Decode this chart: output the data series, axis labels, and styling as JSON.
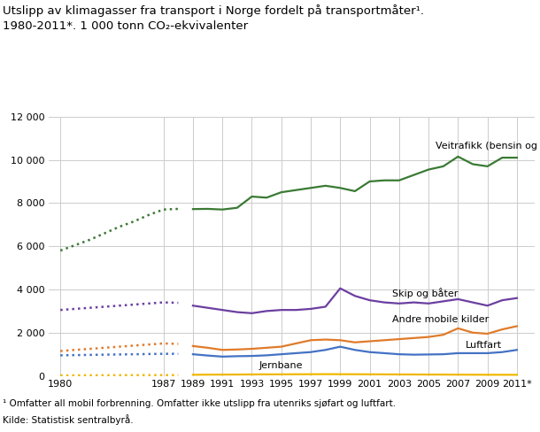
{
  "title_line1": "Utslipp av klimagasser fra transport i Norge fordelt på transportmåter¹.",
  "title_line2": "1980-2011*. 1 000 tonn CO₂-ekvivalenter",
  "footnote1": "¹ Omfatter all mobil forbrenning. Omfatter ikke utslipp fra utenriks sjøfart og luftfart.",
  "footnote2": "Kilde: Statistisk sentralbyrå.",
  "years_dotted": [
    1980,
    1981,
    1982,
    1983,
    1984,
    1985,
    1986,
    1987,
    1988
  ],
  "years_solid": [
    1989,
    1990,
    1991,
    1992,
    1993,
    1994,
    1995,
    1996,
    1997,
    1998,
    1999,
    2000,
    2001,
    2002,
    2003,
    2004,
    2005,
    2006,
    2007,
    2008,
    2009,
    2010,
    2011
  ],
  "veitrafikk_dotted": [
    5800,
    6050,
    6300,
    6600,
    6900,
    7150,
    7450,
    7700,
    7730
  ],
  "veitrafikk_solid": [
    7720,
    7730,
    7700,
    7780,
    8300,
    8250,
    8500,
    8600,
    8700,
    8800,
    8700,
    8550,
    9000,
    9050,
    9050,
    9300,
    9550,
    9700,
    10150,
    9800,
    9700,
    10100,
    10100
  ],
  "skip_dotted": [
    3050,
    3100,
    3150,
    3200,
    3250,
    3300,
    3350,
    3400,
    3380
  ],
  "skip_solid": [
    3250,
    3150,
    3050,
    2950,
    2900,
    3000,
    3050,
    3050,
    3100,
    3200,
    4050,
    3700,
    3500,
    3400,
    3350,
    3400,
    3350,
    3450,
    3550,
    3400,
    3250,
    3500,
    3600
  ],
  "andre_dotted": [
    1150,
    1200,
    1250,
    1300,
    1350,
    1400,
    1450,
    1500,
    1480
  ],
  "andre_solid": [
    1380,
    1300,
    1200,
    1220,
    1250,
    1300,
    1350,
    1500,
    1650,
    1680,
    1650,
    1550,
    1600,
    1650,
    1700,
    1750,
    1800,
    1900,
    2200,
    2000,
    1950,
    2150,
    2300
  ],
  "luftfart_dotted": [
    950,
    960,
    970,
    980,
    990,
    1000,
    1010,
    1020,
    1020
  ],
  "luftfart_solid": [
    1000,
    940,
    890,
    910,
    920,
    950,
    1000,
    1050,
    1100,
    1200,
    1350,
    1200,
    1100,
    1050,
    1000,
    980,
    990,
    1000,
    1050,
    1050,
    1050,
    1100,
    1200
  ],
  "jernbane_dotted": [
    20,
    22,
    24,
    26,
    28,
    30,
    32,
    34,
    35
  ],
  "jernbane_solid": [
    50,
    55,
    58,
    60,
    65,
    68,
    70,
    72,
    75,
    78,
    75,
    73,
    70,
    68,
    65,
    63,
    60,
    58,
    55,
    53,
    50,
    50,
    48
  ],
  "color_veitrafikk": "#3a7a34",
  "color_skip": "#6b3fa0",
  "color_andre": "#e07b2a",
  "color_luftfart": "#4472c4",
  "color_jernbane": "#f0b800",
  "ylim": [
    0,
    12000
  ],
  "yticks": [
    0,
    2000,
    4000,
    6000,
    8000,
    10000,
    12000
  ],
  "xtick_labels": [
    "1980",
    "1987",
    "1989",
    "1991",
    "1993",
    "1995",
    "1997",
    "1999",
    "2001",
    "2003",
    "2005",
    "2007",
    "2009",
    "2011*"
  ],
  "xtick_positions": [
    1980,
    1987,
    1989,
    1991,
    1993,
    1995,
    1997,
    1999,
    2001,
    2003,
    2005,
    2007,
    2009,
    2011
  ],
  "label_veitrafikk": "Veitrafikk (bensin og diesel)",
  "label_skip": "Skip og båter",
  "label_andre": "Andre mobile kilder",
  "label_luftfart": "Luftfart",
  "label_jernbane": "Jernbane",
  "ann_veitrafikk_x": 2005.5,
  "ann_veitrafikk_y": 10650,
  "ann_skip_x": 2002.5,
  "ann_skip_y": 3820,
  "ann_andre_x": 2002.5,
  "ann_andre_y": 2620,
  "ann_luftfart_x": 2007.5,
  "ann_luftfart_y": 1430,
  "ann_jernbane_x": 1993.5,
  "ann_jernbane_y": 490
}
